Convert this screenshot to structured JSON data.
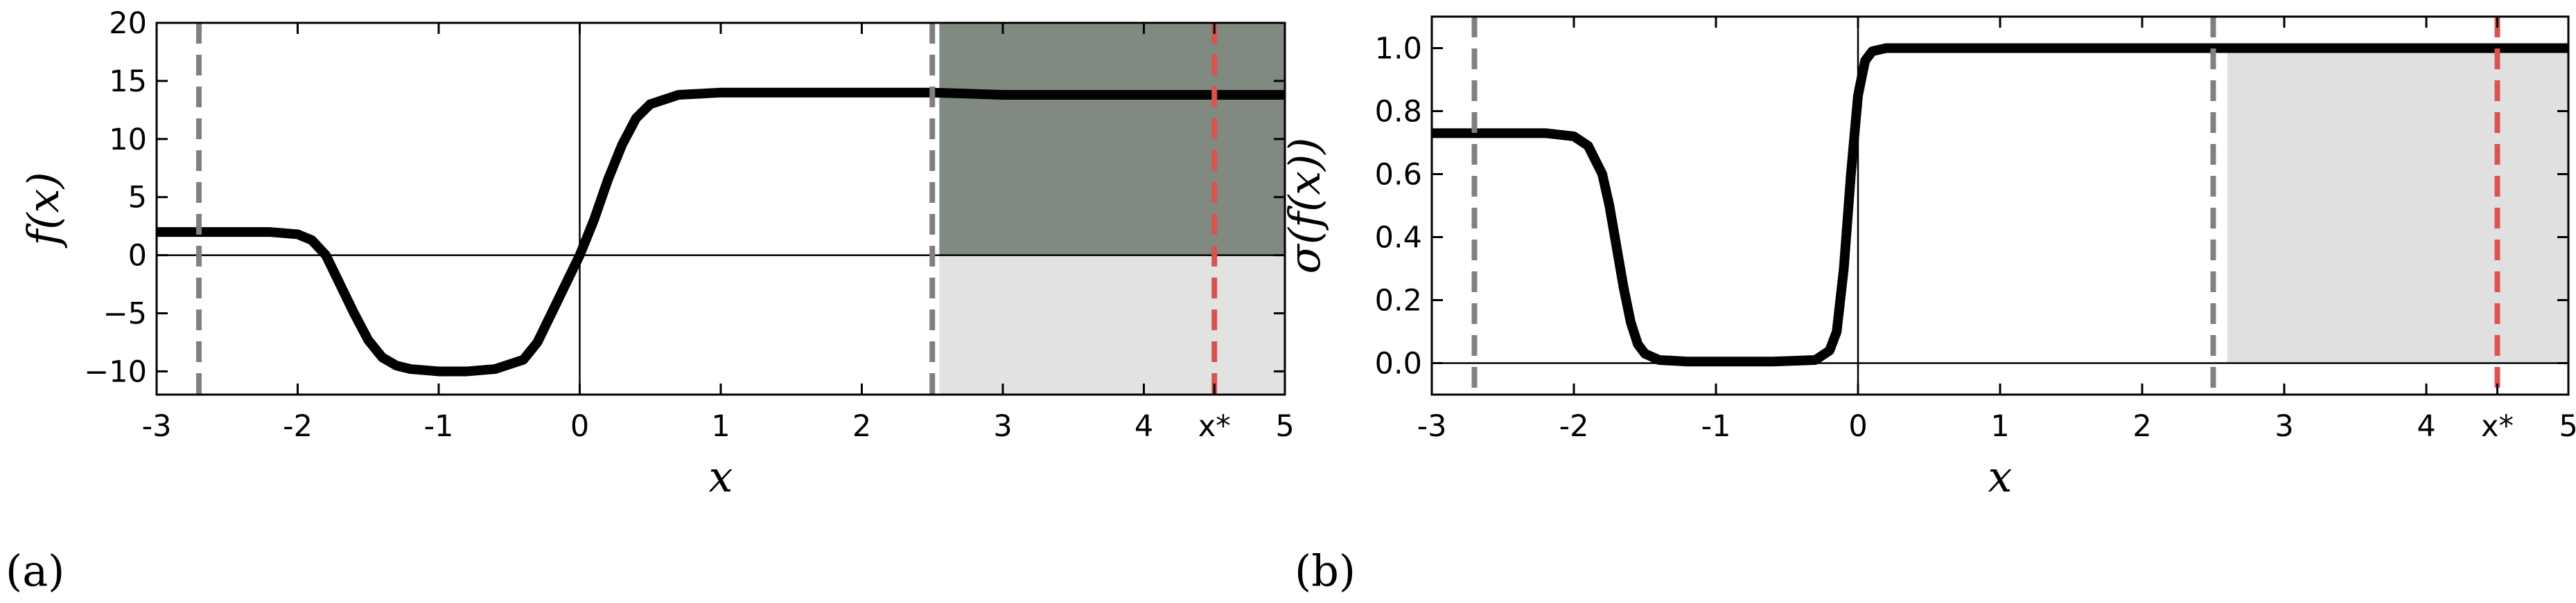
{
  "chart_data": [
    {
      "type": "line",
      "panel_label": "(a)",
      "xlabel": "x",
      "ylabel": "f(x)",
      "x": [
        -3,
        -2.2,
        -2,
        -1.9,
        -1.8,
        -1.7,
        -1.6,
        -1.5,
        -1.4,
        -1.3,
        -1.2,
        -1,
        -0.8,
        -0.6,
        -0.4,
        -0.3,
        -0.2,
        -0.1,
        0,
        0.1,
        0.2,
        0.3,
        0.4,
        0.5,
        0.7,
        1,
        2,
        2.5,
        3,
        4,
        5
      ],
      "values": [
        2,
        2,
        1.8,
        1.3,
        0,
        -2.5,
        -5,
        -7.3,
        -8.8,
        -9.5,
        -9.8,
        -10,
        -10,
        -9.8,
        -9,
        -7.5,
        -5,
        -2.5,
        0,
        3,
        6.5,
        9.5,
        11.8,
        13,
        13.8,
        14,
        14,
        14,
        13.8,
        13.8,
        13.8
      ],
      "color": "#000000",
      "bands": [
        {
          "x": [
            2.55,
            5
          ],
          "upper": [
            20,
            20
          ],
          "lower": [
            0,
            0
          ],
          "color": "#808a80"
        },
        {
          "x": [
            2.55,
            5
          ],
          "upper": [
            0,
            0
          ],
          "lower": [
            -12,
            -12
          ],
          "color": "#e2e2e2"
        }
      ],
      "vlines": [
        {
          "x": -2.7,
          "color": "#808080"
        },
        {
          "x": 2.5,
          "color": "#808080"
        },
        {
          "x": 4.5,
          "color": "#d9534f"
        }
      ],
      "zero_lines": true,
      "xlim": [
        -3,
        5
      ],
      "ylim": [
        -12,
        20
      ],
      "xticks": [
        {
          "value": -3,
          "label": "-3"
        },
        {
          "value": -2,
          "label": "-2"
        },
        {
          "value": -1,
          "label": "-1"
        },
        0,
        1,
        2,
        3,
        4,
        {
          "value": 4.5,
          "label": "x*"
        },
        5
      ],
      "yticks": [
        {
          "value": -10,
          "label": "−10"
        },
        {
          "value": -5,
          "label": "−5"
        },
        0,
        5,
        10,
        15,
        20
      ]
    },
    {
      "type": "line",
      "panel_label": "(b)",
      "xlabel": "x",
      "ylabel": "σ(f(x))",
      "x": [
        -3,
        -2.2,
        -2,
        -1.9,
        -1.8,
        -1.75,
        -1.7,
        -1.65,
        -1.6,
        -1.55,
        -1.5,
        -1.4,
        -1.2,
        -0.6,
        -0.3,
        -0.2,
        -0.15,
        -0.1,
        -0.05,
        0,
        0.05,
        0.1,
        0.2,
        1,
        5
      ],
      "values": [
        0.73,
        0.73,
        0.72,
        0.69,
        0.6,
        0.5,
        0.37,
        0.24,
        0.13,
        0.06,
        0.03,
        0.01,
        0.005,
        0.005,
        0.01,
        0.04,
        0.1,
        0.3,
        0.6,
        0.85,
        0.96,
        0.99,
        1,
        1,
        1
      ],
      "color": "#000000",
      "bands": [
        {
          "x": [
            2.6,
            5
          ],
          "upper": [
            1,
            1
          ],
          "lower": [
            0,
            0
          ],
          "color": "#e0e0e0"
        }
      ],
      "vlines": [
        {
          "x": -2.7,
          "color": "#808080"
        },
        {
          "x": 2.5,
          "color": "#808080"
        },
        {
          "x": 4.5,
          "color": "#d9534f"
        }
      ],
      "zero_lines": true,
      "xlim": [
        -3,
        5
      ],
      "ylim": [
        -0.1,
        1.1
      ],
      "xticks": [
        {
          "value": -3,
          "label": "-3"
        },
        {
          "value": -2,
          "label": "-2"
        },
        {
          "value": -1,
          "label": "-1"
        },
        0,
        1,
        2,
        3,
        4,
        {
          "value": 4.5,
          "label": "x*"
        },
        5
      ],
      "yticks": [
        {
          "value": 0,
          "label": "0.0"
        },
        0.2,
        0.4,
        0.6,
        0.8,
        {
          "value": 1,
          "label": "1.0"
        }
      ]
    }
  ]
}
